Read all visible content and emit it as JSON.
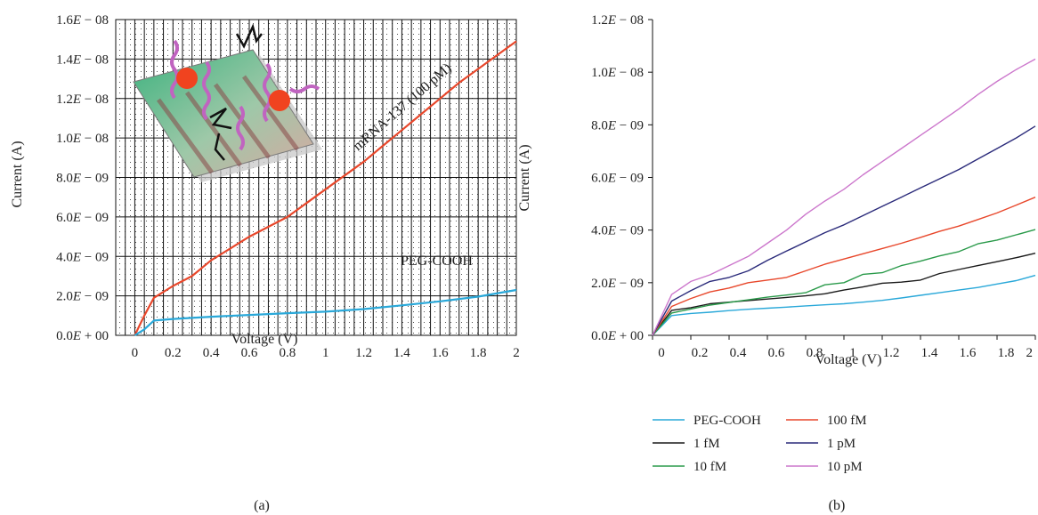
{
  "chart_data": [
    {
      "type": "line",
      "panel_label": "(a)",
      "xlabel": "Voltage (V)",
      "ylabel": "Current (A)",
      "xlim": [
        -0.1,
        2.0
      ],
      "ylim": [
        0,
        1.6e-08
      ],
      "xticks": [
        "0",
        "0.2",
        "0.4",
        "0.6",
        "0.8",
        "1",
        "1.2",
        "1.4",
        "1.6",
        "1.8",
        "2"
      ],
      "yticks": [
        "0.0E + 00",
        "2.0E − 09",
        "4.0E − 09",
        "6.0E − 09",
        "8.0E − 09",
        "1.0E − 08",
        "1.2E − 08",
        "1.4E − 08",
        "1.6E − 08"
      ],
      "grid": true,
      "background": "dotted",
      "annotations": [
        "mRNA-137 (100 pM)",
        "PEG-COOH"
      ],
      "series": [
        {
          "name": "mRNA-137 (100 pM)",
          "color": "#e8472b",
          "x": [
            0,
            0.05,
            0.1,
            0.15,
            0.2,
            0.3,
            0.4,
            0.5,
            0.6,
            0.7,
            0.8,
            0.9,
            1.0,
            1.1,
            1.2,
            1.3,
            1.4,
            1.5,
            1.6,
            1.7,
            1.8,
            1.9,
            2.0
          ],
          "y": [
            0,
            1e-09,
            1.9e-09,
            2.2e-09,
            2.5e-09,
            3e-09,
            3.8e-09,
            4.4e-09,
            5e-09,
            5.5e-09,
            6e-09,
            6.7e-09,
            7.4e-09,
            8.1e-09,
            8.8e-09,
            9.6e-09,
            1.04e-08,
            1.12e-08,
            1.2e-08,
            1.28e-08,
            1.35e-08,
            1.42e-08,
            1.49e-08
          ]
        },
        {
          "name": "PEG-COOH",
          "color": "#29a8d9",
          "x": [
            0,
            0.05,
            0.1,
            0.2,
            0.4,
            0.6,
            0.8,
            1.0,
            1.2,
            1.4,
            1.6,
            1.8,
            2.0
          ],
          "y": [
            0,
            3e-10,
            7.5e-10,
            8.3e-10,
            9.4e-10,
            1.03e-09,
            1.12e-09,
            1.2e-09,
            1.33e-09,
            1.52e-09,
            1.72e-09,
            1.96e-09,
            2.3e-09
          ]
        }
      ]
    },
    {
      "type": "line",
      "panel_label": "(b)",
      "xlabel": "Voltage (V)",
      "ylabel": "Current (A)",
      "xlim": [
        0,
        2.0
      ],
      "ylim": [
        0,
        1.2e-08
      ],
      "xticks": [
        "0",
        "0.2",
        "0.4",
        "0.6",
        "0.8",
        "1",
        "1.2",
        "1.4",
        "1.6",
        "1.8",
        "2"
      ],
      "yticks": [
        "0.0E + 00",
        "2.0E − 09",
        "4.0E − 09",
        "6.0E − 09",
        "8.0E − 09",
        "1.0E − 08",
        "1.2E − 08"
      ],
      "grid": false,
      "legend_position": "bottom",
      "x": [
        0,
        0.1,
        0.2,
        0.3,
        0.4,
        0.5,
        0.6,
        0.7,
        0.8,
        0.9,
        1.0,
        1.1,
        1.2,
        1.3,
        1.4,
        1.5,
        1.6,
        1.7,
        1.8,
        1.9,
        2.0
      ],
      "series": [
        {
          "name": "PEG-COOH",
          "color": "#29a8d9",
          "values": [
            0,
            7.5e-10,
            8.3e-10,
            8.8e-10,
            9.4e-10,
            9.9e-10,
            1.03e-09,
            1.07e-09,
            1.12e-09,
            1.16e-09,
            1.2e-09,
            1.26e-09,
            1.33e-09,
            1.42e-09,
            1.52e-09,
            1.62e-09,
            1.72e-09,
            1.82e-09,
            1.95e-09,
            2.08e-09,
            2.28e-09
          ]
        },
        {
          "name": "1 fM",
          "color": "#1a1a1a",
          "values": [
            0,
            9.5e-10,
            1.05e-09,
            1.2e-09,
            1.26e-09,
            1.32e-09,
            1.38e-09,
            1.44e-09,
            1.5e-09,
            1.58e-09,
            1.72e-09,
            1.84e-09,
            1.98e-09,
            2.02e-09,
            2.1e-09,
            2.35e-09,
            2.5e-09,
            2.65e-09,
            2.8e-09,
            2.95e-09,
            3.12e-09
          ]
        },
        {
          "name": "10 fM",
          "color": "#2a9a4a",
          "values": [
            0,
            8.5e-10,
            1e-09,
            1.15e-09,
            1.25e-09,
            1.35e-09,
            1.45e-09,
            1.53e-09,
            1.62e-09,
            1.92e-09,
            2e-09,
            2.32e-09,
            2.38e-09,
            2.65e-09,
            2.82e-09,
            3.02e-09,
            3.18e-09,
            3.48e-09,
            3.62e-09,
            3.82e-09,
            4.02e-09
          ]
        },
        {
          "name": "100 fM",
          "color": "#e8472b",
          "values": [
            0,
            1.1e-09,
            1.4e-09,
            1.65e-09,
            1.8e-09,
            2e-09,
            2.1e-09,
            2.2e-09,
            2.45e-09,
            2.7e-09,
            2.9e-09,
            3.1e-09,
            3.3e-09,
            3.5e-09,
            3.72e-09,
            3.95e-09,
            4.15e-09,
            4.4e-09,
            4.65e-09,
            4.95e-09,
            5.25e-09
          ]
        },
        {
          "name": "1 pM",
          "color": "#2a2a7a",
          "values": [
            0,
            1.3e-09,
            1.7e-09,
            2.05e-09,
            2.2e-09,
            2.45e-09,
            2.85e-09,
            3.2e-09,
            3.55e-09,
            3.9e-09,
            4.2e-09,
            4.55e-09,
            4.9e-09,
            5.25e-09,
            5.6e-09,
            5.95e-09,
            6.3e-09,
            6.7e-09,
            7.1e-09,
            7.5e-09,
            7.95e-09
          ]
        },
        {
          "name": "10 pM",
          "color": "#cc77cc",
          "values": [
            0,
            1.55e-09,
            2.05e-09,
            2.3e-09,
            2.65e-09,
            3e-09,
            3.5e-09,
            4e-09,
            4.6e-09,
            5.1e-09,
            5.55e-09,
            6.1e-09,
            6.6e-09,
            7.1e-09,
            7.6e-09,
            8.1e-09,
            8.6e-09,
            9.15e-09,
            9.65e-09,
            1.01e-08,
            1.05e-08
          ]
        }
      ]
    }
  ]
}
